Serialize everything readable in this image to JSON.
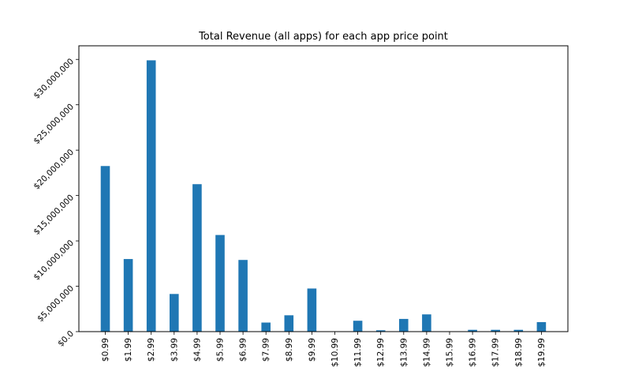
{
  "chart_data": {
    "type": "bar",
    "title": "Total Revenue (all apps) for each app price point",
    "xlabel": "",
    "ylabel": "",
    "categories": [
      "$0.99",
      "$1.99",
      "$2.99",
      "$3.99",
      "$4.99",
      "$5.99",
      "$6.99",
      "$7.99",
      "$8.99",
      "$9.99",
      "$10.99",
      "$11.99",
      "$12.99",
      "$13.99",
      "$14.99",
      "$15.99",
      "$16.99",
      "$17.99",
      "$18.99",
      "$19.99"
    ],
    "values": [
      18250000,
      8000000,
      29900000,
      4150000,
      16250000,
      10650000,
      7900000,
      1000000,
      1800000,
      4750000,
      0,
      1200000,
      150000,
      1400000,
      1900000,
      0,
      200000,
      200000,
      200000,
      1050000
    ],
    "ylim": [
      0,
      31500000
    ],
    "yticks": [
      0,
      5000000,
      10000000,
      15000000,
      20000000,
      25000000,
      30000000
    ],
    "ytick_labels": [
      "$0.0",
      "$5,000,000",
      "$10,000,000",
      "$15,000,000",
      "$20,000,000",
      "$25,000,000",
      "$30,000,000"
    ],
    "grid": false,
    "legend": "none",
    "bar_color": "#1f77b4"
  }
}
